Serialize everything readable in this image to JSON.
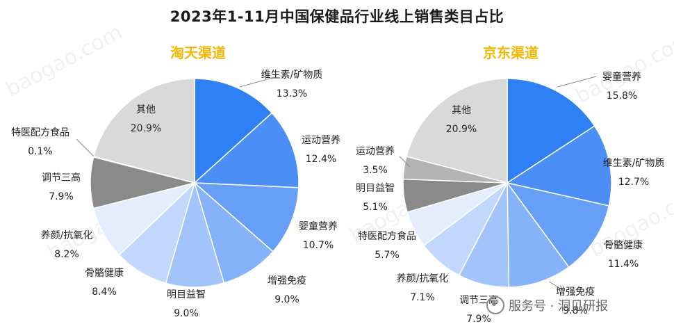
{
  "title": "2023年1-11月中国保健品行业线上销售类目占比",
  "watermark": "baogao.com",
  "footer": {
    "brand": "服务号 · 洞见研报"
  },
  "chart_data": [
    {
      "type": "pie",
      "title": "淘天渠道",
      "slices": [
        {
          "label": "维生素/矿物质",
          "value": 13.3,
          "display": "13.3%",
          "color": "#2f80f4"
        },
        {
          "label": "运动营养",
          "value": 12.4,
          "display": "12.4%",
          "color": "#4b8ff6"
        },
        {
          "label": "婴童营养",
          "value": 10.7,
          "display": "10.7%",
          "color": "#679ff7"
        },
        {
          "label": "增强免疫",
          "value": 9.0,
          "display": "9.0%",
          "color": "#85b2f9"
        },
        {
          "label": "明目益智",
          "value": 9.0,
          "display": "9.0%",
          "color": "#a3c4fa"
        },
        {
          "label": "骨骼健康",
          "value": 8.4,
          "display": "8.4%",
          "color": "#c1d7fc"
        },
        {
          "label": "养颜/抗氧化",
          "value": 8.2,
          "display": "8.2%",
          "color": "#e3edfd"
        },
        {
          "label": "调节三高",
          "value": 7.9,
          "display": "7.9%",
          "color": "#8a8a8a"
        },
        {
          "label": "特医配方食品",
          "value": 0.1,
          "display": "0.1%",
          "color": "#b3b3b3"
        },
        {
          "label": "其他",
          "value": 20.9,
          "display": "20.9%",
          "color": "#d9d9d9"
        }
      ]
    },
    {
      "type": "pie",
      "title": "京东渠道",
      "slices": [
        {
          "label": "婴童营养",
          "value": 15.8,
          "display": "15.8%",
          "color": "#2f80f4"
        },
        {
          "label": "维生素/矿物质",
          "value": 12.7,
          "display": "12.7%",
          "color": "#4b8ff6"
        },
        {
          "label": "骨骼健康",
          "value": 11.4,
          "display": "11.4%",
          "color": "#679ff7"
        },
        {
          "label": "增强免疫",
          "value": 9.8,
          "display": "9.8%",
          "color": "#85b2f9"
        },
        {
          "label": "调节三高",
          "value": 7.9,
          "display": "7.9%",
          "color": "#a3c4fa"
        },
        {
          "label": "养颜/抗氧化",
          "value": 7.1,
          "display": "7.1%",
          "color": "#c1d7fc"
        },
        {
          "label": "特医配方食品",
          "value": 5.7,
          "display": "5.7%",
          "color": "#e3edfd"
        },
        {
          "label": "明目益智",
          "value": 5.1,
          "display": "5.1%",
          "color": "#8a8a8a"
        },
        {
          "label": "运动营养",
          "value": 3.5,
          "display": "3.5%",
          "color": "#b3b3b3"
        },
        {
          "label": "其他",
          "value": 20.9,
          "display": "20.9%",
          "color": "#d9d9d9"
        }
      ]
    }
  ]
}
